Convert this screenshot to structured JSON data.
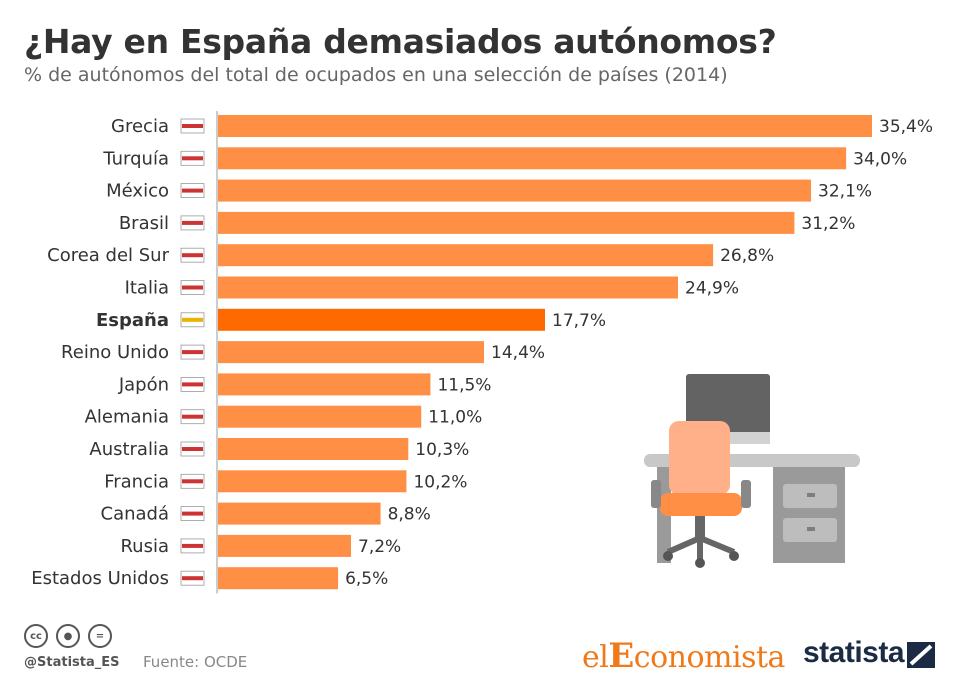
{
  "header": {
    "title": "¿Hay en España demasiados autónomos?",
    "subtitle": "% de autónomos del total de ocupados en una selección de países (2014)"
  },
  "chart_data": {
    "type": "bar",
    "orientation": "horizontal",
    "categories": [
      "Grecia",
      "Turquía",
      "México",
      "Brasil",
      "Corea del Sur",
      "Italia",
      "España",
      "Reino Unido",
      "Japón",
      "Alemania",
      "Australia",
      "Francia",
      "Canadá",
      "Rusia",
      "Estados Unidos"
    ],
    "values": [
      35.4,
      34.0,
      32.1,
      31.2,
      26.8,
      24.9,
      17.7,
      14.4,
      11.5,
      11.0,
      10.3,
      10.2,
      8.8,
      7.2,
      6.5
    ],
    "value_labels": [
      "35,4%",
      "34,0%",
      "32,1%",
      "31,2%",
      "26,8%",
      "24,9%",
      "17,7%",
      "14,4%",
      "11,5%",
      "11,0%",
      "10,3%",
      "10,2%",
      "8,8%",
      "7,2%",
      "6,5%"
    ],
    "highlight_category": "España",
    "xlim": [
      0,
      35.4
    ],
    "grid": false,
    "legend": "none"
  },
  "colors": {
    "bar": "#ff8f45",
    "bar_highlight": "#ff6a00",
    "text": "#333333",
    "axis": "#999999"
  },
  "footer": {
    "handle": "@Statista_ES",
    "source": "Fuente: OCDE",
    "brand_left_el": "el",
    "brand_left_E": "E",
    "brand_left_rest": "conomista",
    "brand_right": "statista"
  }
}
